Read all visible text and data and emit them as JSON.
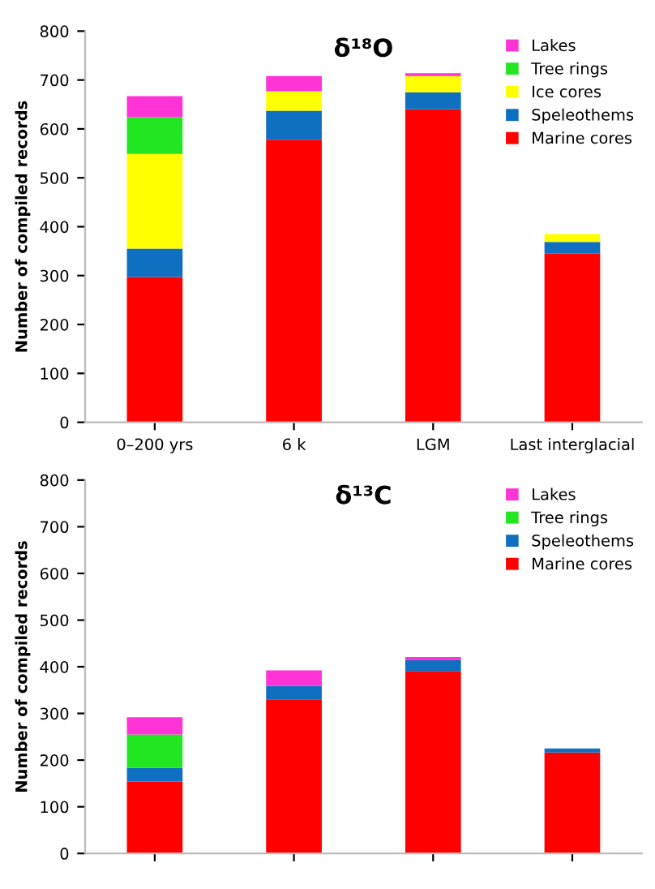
{
  "chart_data": [
    {
      "type": "bar",
      "stacked": true,
      "title": "δ¹⁸O",
      "ylabel": "Number of compiled records",
      "categories": [
        "0–200 yrs",
        "6 k",
        "LGM",
        "Last interglacial"
      ],
      "ylim": [
        0,
        800
      ],
      "yticks": [
        0,
        100,
        200,
        300,
        400,
        500,
        600,
        700,
        800
      ],
      "grid": false,
      "legend": "top right",
      "series": [
        {
          "name": "Marine cores",
          "color": "#ff0000",
          "values": [
            297,
            578,
            640,
            345
          ]
        },
        {
          "name": "Speleothems",
          "color": "#0f6fc0",
          "values": [
            58,
            59,
            35,
            24
          ]
        },
        {
          "name": "Ice cores",
          "color": "#ffff00",
          "values": [
            194,
            40,
            33,
            16
          ]
        },
        {
          "name": "Tree rings",
          "color": "#22e622",
          "values": [
            75,
            0,
            0,
            0
          ]
        },
        {
          "name": "Lakes",
          "color": "#ff33d6",
          "values": [
            43,
            31,
            6,
            0
          ]
        }
      ]
    },
    {
      "type": "bar",
      "stacked": true,
      "title": "δ¹³C",
      "ylabel": "Number of compiled records",
      "categories": [
        null,
        null,
        null,
        null
      ],
      "ylim": [
        0,
        800
      ],
      "yticks": [
        0,
        100,
        200,
        300,
        400,
        500,
        600,
        700,
        800
      ],
      "grid": false,
      "legend": "top right",
      "tick_labels": "y",
      "series": [
        {
          "name": "Marine cores",
          "color": "#ff0000",
          "values": [
            154,
            330,
            391,
            216
          ]
        },
        {
          "name": "Speleothems",
          "color": "#0f6fc0",
          "values": [
            29,
            29,
            23,
            9
          ]
        },
        {
          "name": "Tree rings",
          "color": "#22e622",
          "values": [
            72,
            0,
            0,
            0
          ]
        },
        {
          "name": "Lakes",
          "color": "#ff33d6",
          "values": [
            37,
            33,
            7,
            0
          ]
        }
      ]
    }
  ]
}
